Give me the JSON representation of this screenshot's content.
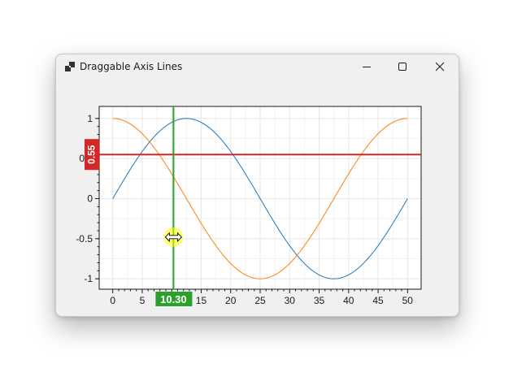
{
  "window": {
    "title": "Draggable Axis Lines",
    "icons": {
      "app": "app-icon",
      "minimize": "minimize-icon",
      "maximize": "maximize-icon",
      "close": "close-icon"
    }
  },
  "chart_data": {
    "type": "line",
    "xlim": [
      -2.3,
      52.3
    ],
    "ylim": [
      -1.13,
      1.15
    ],
    "xticks": [
      "0",
      "5",
      "10",
      "15",
      "20",
      "25",
      "30",
      "35",
      "40",
      "45",
      "50"
    ],
    "yticks": [
      "-1",
      "-0.5",
      "0",
      "0.5",
      "1"
    ],
    "grid": true,
    "series": [
      {
        "function": "sin",
        "period": 50,
        "x_start": 0,
        "x_end": 50,
        "color": "#1f77b4"
      },
      {
        "function": "cos",
        "period": 50,
        "x_start": 0,
        "x_end": 50,
        "color": "#ff7f0e"
      }
    ],
    "draggable_lines": {
      "vertical": {
        "value": 10.3,
        "label": "10.30",
        "color": "#2ca02c"
      },
      "horizontal": {
        "value": 0.55,
        "label": "0.55",
        "color": "#d62728"
      }
    },
    "cursor": {
      "icon": "resize-horizontal-cursor-icon",
      "x": 10.3,
      "y": -0.48
    }
  }
}
